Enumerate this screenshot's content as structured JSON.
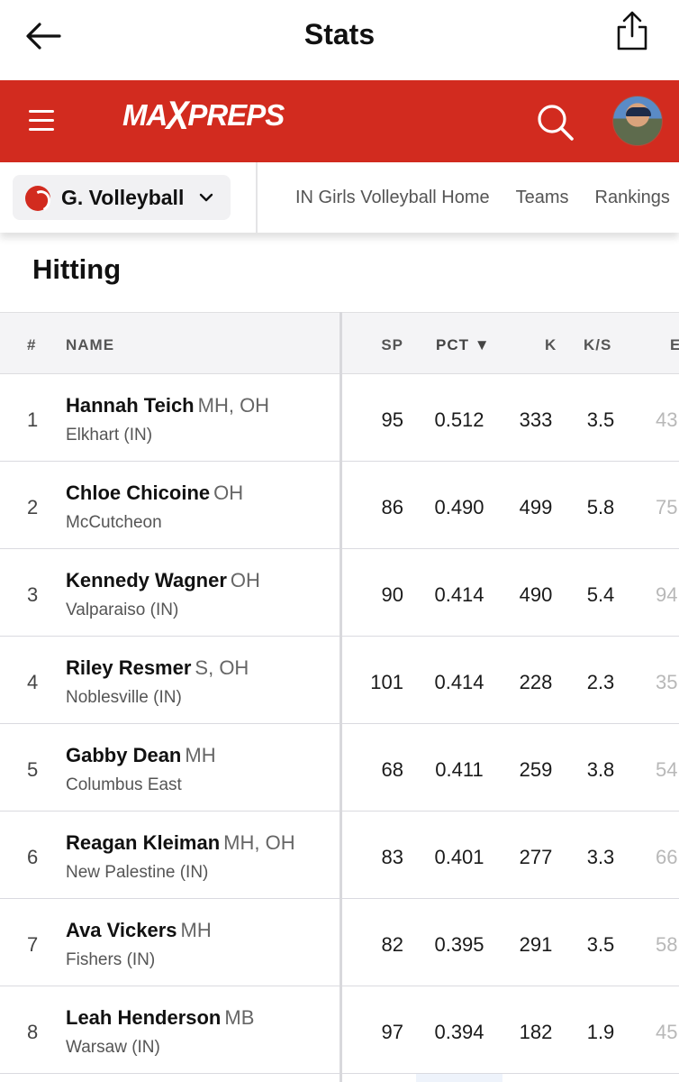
{
  "app": {
    "title": "Stats"
  },
  "brand": {
    "logo_left": "MA",
    "logo_x": "X",
    "logo_right": "PREPS"
  },
  "sport_selector": {
    "label": "G. Volleyball"
  },
  "nav_links": [
    "IN Girls Volleyball Home",
    "Teams",
    "Rankings"
  ],
  "section": {
    "title": "Hitting"
  },
  "table": {
    "headers": {
      "rank": "#",
      "name": "NAME",
      "sp": "SP",
      "pct": "PCT ▼",
      "k": "K",
      "ks": "K/S",
      "e": "E"
    },
    "rows": [
      {
        "rank": "1",
        "name": "Hannah Teich",
        "pos": "MH, OH",
        "school": "Elkhart (IN)",
        "sp": "95",
        "pct": "0.512",
        "k": "333",
        "ks": "3.5",
        "e": "43"
      },
      {
        "rank": "2",
        "name": "Chloe Chicoine",
        "pos": "OH",
        "school": "McCutcheon",
        "sp": "86",
        "pct": "0.490",
        "k": "499",
        "ks": "5.8",
        "e": "75"
      },
      {
        "rank": "3",
        "name": "Kennedy Wagner",
        "pos": "OH",
        "school": "Valparaiso (IN)",
        "sp": "90",
        "pct": "0.414",
        "k": "490",
        "ks": "5.4",
        "e": "94"
      },
      {
        "rank": "4",
        "name": "Riley Resmer",
        "pos": "S, OH",
        "school": "Noblesville (IN)",
        "sp": "101",
        "pct": "0.414",
        "k": "228",
        "ks": "2.3",
        "e": "35"
      },
      {
        "rank": "5",
        "name": "Gabby Dean",
        "pos": "MH",
        "school": "Columbus East",
        "sp": "68",
        "pct": "0.411",
        "k": "259",
        "ks": "3.8",
        "e": "54"
      },
      {
        "rank": "6",
        "name": "Reagan Kleiman",
        "pos": "MH, OH",
        "school": "New Palestine (IN)",
        "sp": "83",
        "pct": "0.401",
        "k": "277",
        "ks": "3.3",
        "e": "66"
      },
      {
        "rank": "7",
        "name": "Ava Vickers",
        "pos": "MH",
        "school": "Fishers (IN)",
        "sp": "82",
        "pct": "0.395",
        "k": "291",
        "ks": "3.5",
        "e": "58"
      },
      {
        "rank": "8",
        "name": "Leah Henderson",
        "pos": "MB",
        "school": "Warsaw (IN)",
        "sp": "97",
        "pct": "0.394",
        "k": "182",
        "ks": "1.9",
        "e": "45"
      }
    ]
  },
  "colors": {
    "brand_red": "#d22b1f",
    "pct_highlight": "#eef3fb"
  },
  "icons": [
    "back-arrow-icon",
    "share-icon",
    "menu-icon",
    "search-icon",
    "volleyball-icon",
    "chevron-down-icon",
    "sort-desc-icon"
  ]
}
